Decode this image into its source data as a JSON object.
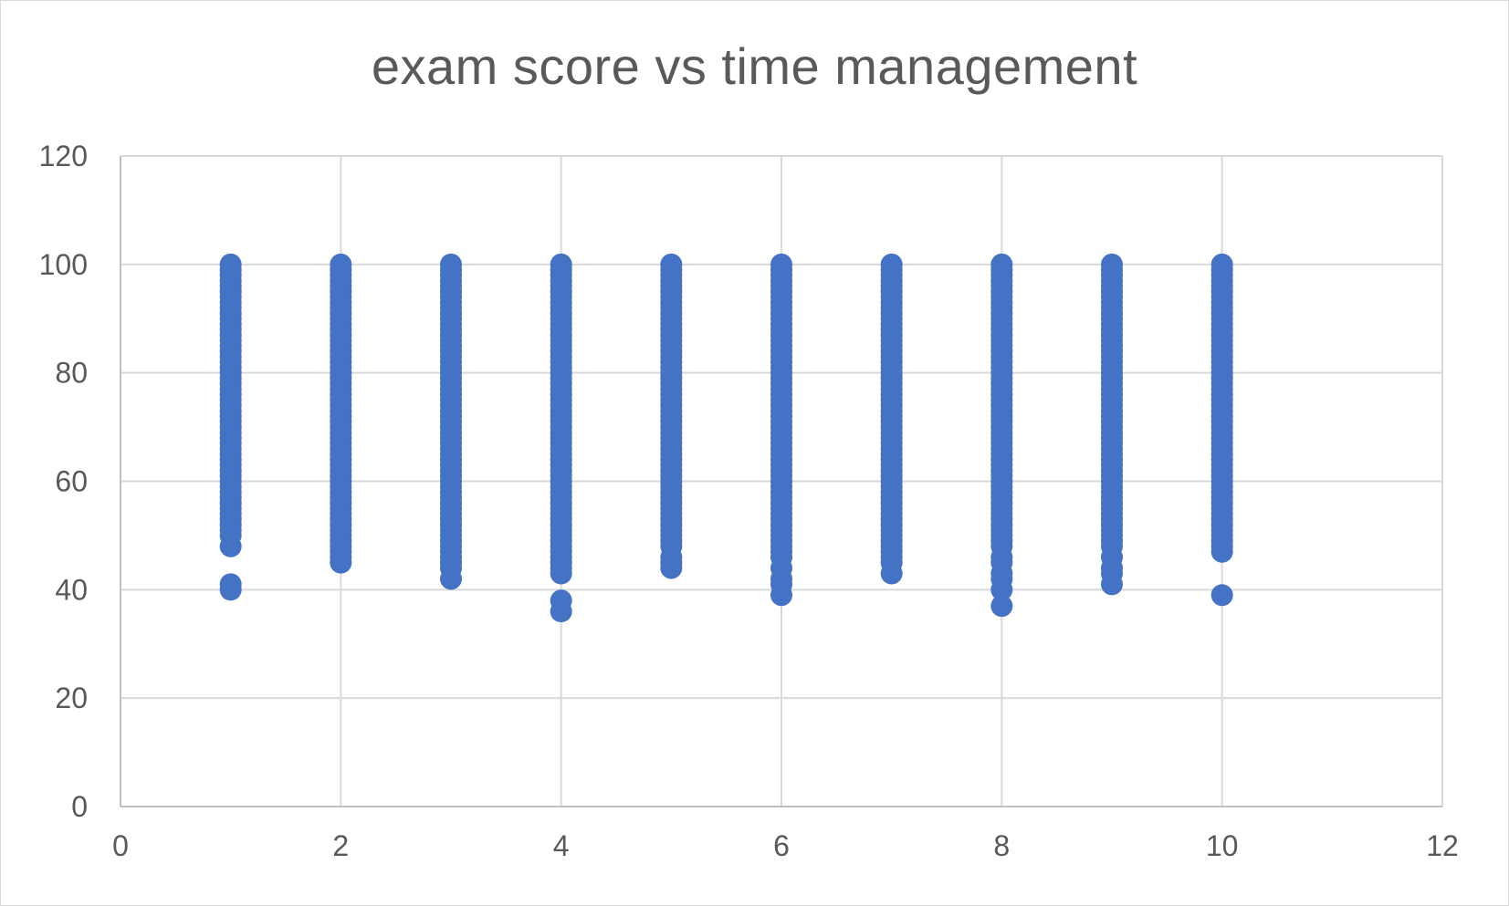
{
  "chart_data": {
    "type": "scatter",
    "title": "exam score vs time management",
    "xlabel": "",
    "ylabel": "",
    "xlim": [
      0,
      12
    ],
    "ylim": [
      0,
      120
    ],
    "x_ticks": [
      0,
      2,
      4,
      6,
      8,
      10,
      12
    ],
    "y_ticks": [
      0,
      20,
      40,
      60,
      80,
      100,
      120
    ],
    "grid": true,
    "legend": "none",
    "marker_color": "#4472C4",
    "series": [
      {
        "clusters": [
          {
            "x": 1,
            "y_min": 51,
            "y_max": 100,
            "outliers": [
              50,
              48,
              41,
              40
            ]
          },
          {
            "x": 2,
            "y_min": 45,
            "y_max": 100,
            "outliers": []
          },
          {
            "x": 3,
            "y_min": 44,
            "y_max": 100,
            "outliers": [
              42
            ]
          },
          {
            "x": 4,
            "y_min": 43,
            "y_max": 100,
            "outliers": [
              38,
              36
            ]
          },
          {
            "x": 5,
            "y_min": 48,
            "y_max": 100,
            "outliers": [
              46,
              45,
              44
            ]
          },
          {
            "x": 6,
            "y_min": 46,
            "y_max": 100,
            "outliers": [
              44,
              42,
              41,
              39
            ]
          },
          {
            "x": 7,
            "y_min": 45,
            "y_max": 100,
            "outliers": [
              43
            ]
          },
          {
            "x": 8,
            "y_min": 48,
            "y_max": 100,
            "outliers": [
              46,
              45,
              43,
              42,
              40,
              37
            ]
          },
          {
            "x": 9,
            "y_min": 48,
            "y_max": 100,
            "outliers": [
              46,
              44,
              43,
              41
            ]
          },
          {
            "x": 10,
            "y_min": 47,
            "y_max": 100,
            "outliers": [
              39
            ]
          }
        ]
      }
    ]
  }
}
